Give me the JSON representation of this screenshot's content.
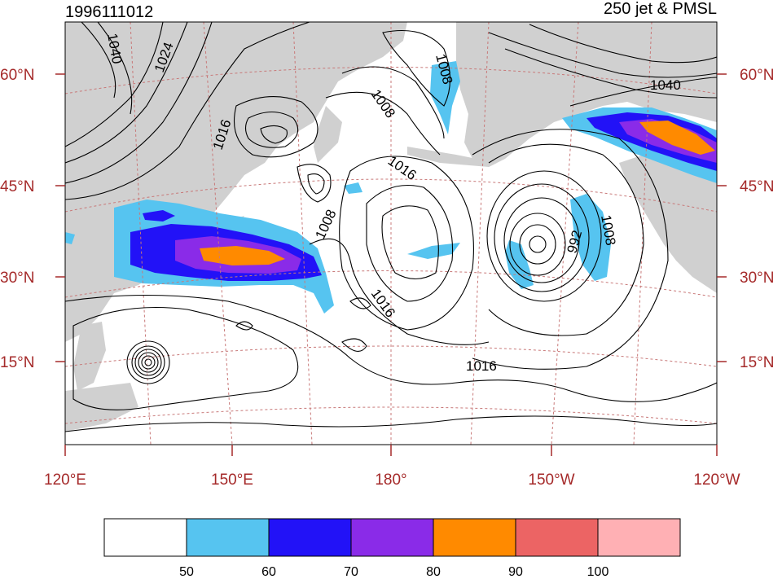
{
  "header": {
    "left_title": "1996111012",
    "right_title": "250 jet & PMSL"
  },
  "axes": {
    "lat_labels": [
      "60°N",
      "45°N",
      "30°N",
      "15°N"
    ],
    "lon_labels": [
      "120°E",
      "150°E",
      "180°",
      "150°W",
      "120°W"
    ]
  },
  "contour_labels": [
    {
      "text": "1040"
    },
    {
      "text": "1024"
    },
    {
      "text": "1016"
    },
    {
      "text": "1008"
    },
    {
      "text": "1008"
    },
    {
      "text": "1016"
    },
    {
      "text": "1008"
    },
    {
      "text": "1016"
    },
    {
      "text": "992"
    },
    {
      "text": "1008"
    },
    {
      "text": "1016"
    },
    {
      "text": "1040"
    }
  ],
  "colorbar": {
    "colors": [
      "#ffffff",
      "#56c4f0",
      "#2212f7",
      "#8a2be8",
      "#ff8a00",
      "#ec6464",
      "#ffb0b4"
    ],
    "labels": [
      "50",
      "60",
      "70",
      "80",
      "90",
      "100"
    ]
  },
  "colors": {
    "axis_label": "#a52a2a",
    "land": "#d0d0d0",
    "grid": "#c87878"
  }
}
